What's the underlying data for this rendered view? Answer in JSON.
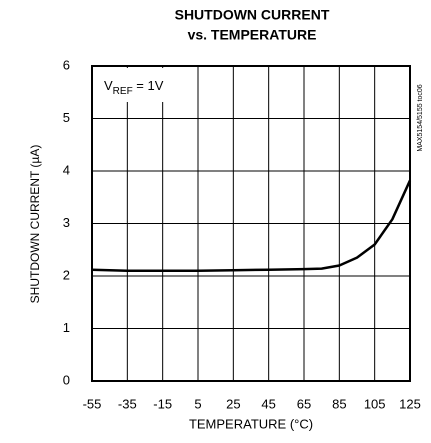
{
  "chart_data": {
    "type": "line",
    "title": "SHUTDOWN CURRENT",
    "subtitle": "vs. TEMPERATURE",
    "x_label": "TEMPERATURE (°C)",
    "y_label": "SHUTDOWN CURRENT (µA)",
    "annotation": {
      "main": "V",
      "sub": "REF",
      "rest": " = 1V"
    },
    "side_note": "MAX5154/5155 toc06",
    "x": [
      -55,
      -35,
      -15,
      5,
      25,
      45,
      65,
      75,
      85,
      95,
      105,
      115,
      125
    ],
    "values": [
      2.12,
      2.1,
      2.1,
      2.1,
      2.11,
      2.12,
      2.13,
      2.14,
      2.2,
      2.35,
      2.6,
      3.08,
      3.82
    ],
    "color": "#000000",
    "xlim": [
      -55,
      125
    ],
    "xticks": [
      -55,
      -35,
      -15,
      5,
      25,
      45,
      65,
      85,
      105,
      125
    ],
    "ylim": [
      0,
      6
    ],
    "yticks": [
      0,
      1,
      2,
      3,
      4,
      5,
      6
    ],
    "grid": true
  }
}
